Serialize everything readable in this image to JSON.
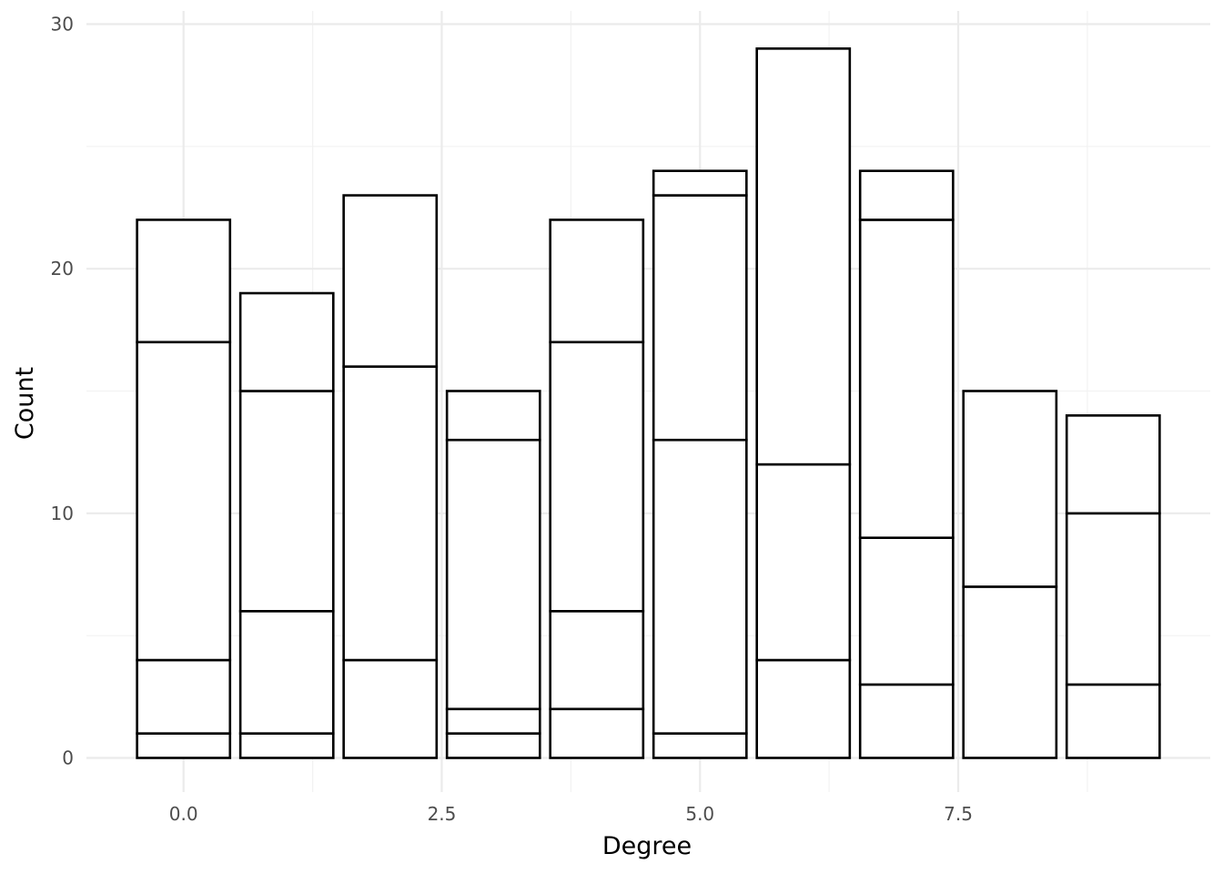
{
  "chart_data": {
    "type": "bar",
    "stacked": true,
    "xlabel": "Degree",
    "ylabel": "Count",
    "xlim": [
      -0.94,
      9.94
    ],
    "ylim": [
      -1.45,
      30
    ],
    "x_ticks": [
      0.0,
      2.5,
      5.0,
      7.5
    ],
    "x_tick_labels": [
      "0.0",
      "2.5",
      "5.0",
      "7.5"
    ],
    "y_ticks": [
      0,
      10,
      20,
      30
    ],
    "y_tick_labels": [
      "0",
      "10",
      "20",
      "30"
    ],
    "grid": true,
    "legend": "none",
    "bar_width": 0.9,
    "fill_color": "#ffffff",
    "outline_color": "#000000",
    "bars": [
      {
        "x": 0,
        "stack_boundaries": [
          1,
          4,
          17,
          22
        ]
      },
      {
        "x": 1,
        "stack_boundaries": [
          1,
          6,
          15,
          19
        ]
      },
      {
        "x": 2,
        "stack_boundaries": [
          4,
          16,
          23
        ]
      },
      {
        "x": 3,
        "stack_boundaries": [
          1,
          2,
          13,
          15
        ]
      },
      {
        "x": 4,
        "stack_boundaries": [
          2,
          6,
          17,
          22
        ]
      },
      {
        "x": 5,
        "stack_boundaries": [
          1,
          13,
          23,
          24
        ]
      },
      {
        "x": 6,
        "stack_boundaries": [
          4,
          12,
          29
        ]
      },
      {
        "x": 7,
        "stack_boundaries": [
          3,
          9,
          22,
          24
        ]
      },
      {
        "x": 8,
        "stack_boundaries": [
          7,
          15
        ]
      },
      {
        "x": 9,
        "stack_boundaries": [
          3,
          10,
          14
        ]
      }
    ]
  }
}
